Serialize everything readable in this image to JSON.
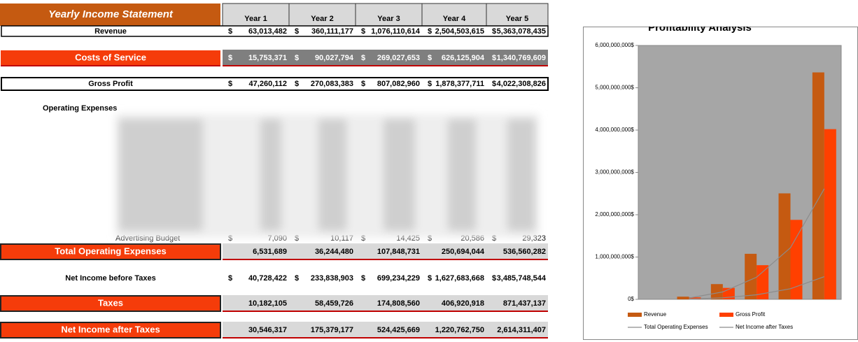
{
  "header": {
    "title": "Yearly Income Statement",
    "columns": [
      "Year 1",
      "Year 2",
      "Year 3",
      "Year 4",
      "Year 5"
    ]
  },
  "currency_symbol": "$",
  "operating_expenses_label": "Operating Expenses",
  "rows": [
    {
      "label": "Revenue",
      "values": [
        "63,013,482",
        "360,111,177",
        "1,076,110,614",
        "2,504,503,615",
        "5,363,078,435"
      ]
    },
    {
      "label": "Costs of Service",
      "values": [
        "15,753,371",
        "90,027,794",
        "269,027,653",
        "626,125,904",
        "1,340,769,609"
      ]
    },
    {
      "label": "Gross Profit",
      "values": [
        "47,260,112",
        "270,083,383",
        "807,082,960",
        "1,878,377,711",
        "4,022,308,826"
      ]
    },
    {
      "label": "Advertising Budget",
      "values": [
        "7,090",
        "10,117",
        "14,425",
        "20,586",
        "29,323"
      ]
    },
    {
      "label": "Total Operating Expenses",
      "values": [
        "6,531,689",
        "36,244,480",
        "107,848,731",
        "250,694,044",
        "536,560,282"
      ]
    },
    {
      "label": "Net Income before Taxes",
      "values": [
        "40,728,422",
        "233,838,903",
        "699,234,229",
        "1,627,683,668",
        "3,485,748,544"
      ]
    },
    {
      "label": "Taxes",
      "values": [
        "10,182,105",
        "58,459,726",
        "174,808,560",
        "406,920,918",
        "871,437,137"
      ]
    },
    {
      "label": "Net Income after Taxes",
      "values": [
        "30,546,317",
        "175,379,177",
        "524,425,669",
        "1,220,762,750",
        "2,614,311,407"
      ]
    }
  ],
  "chart_data": {
    "type": "bar",
    "title": "Profitability Analysis",
    "categories": [
      null,
      null,
      null,
      null,
      null,
      null
    ],
    "series": [
      {
        "name": "Revenue",
        "color": "#c55a11",
        "type": "bar",
        "values": [
          null,
          63013482,
          360111177,
          1076110614,
          2504503615,
          5363078435
        ]
      },
      {
        "name": "Gross Profit",
        "color": "#ff4000",
        "type": "bar",
        "values": [
          null,
          47260112,
          270083383,
          807082960,
          1878377711,
          4022308826
        ]
      },
      {
        "name": "Total Operating Expenses",
        "color": "#8c8c8c",
        "type": "line",
        "values": [
          null,
          6531689,
          36244480,
          107848731,
          250694044,
          536560282
        ]
      },
      {
        "name": "Net Income after Taxes",
        "color": "#8c8c8c",
        "type": "line",
        "values": [
          null,
          30546317,
          175379177,
          524425669,
          1220762750,
          2614311407
        ]
      }
    ],
    "ylim": [
      0,
      6000000000
    ],
    "yticks": [
      {
        "value": 0,
        "label": "0$"
      },
      {
        "value": 1000000000,
        "label": "1,000,000,000$"
      },
      {
        "value": 2000000000,
        "label": "2,000,000,000$"
      },
      {
        "value": 3000000000,
        "label": "3,000,000,000$"
      },
      {
        "value": 4000000000,
        "label": "4,000,000,000$"
      },
      {
        "value": 5000000000,
        "label": "5,000,000,000$"
      },
      {
        "value": 6000000000,
        "label": "6,000,000,000$"
      }
    ],
    "plot_background": "#a6a6a6"
  }
}
